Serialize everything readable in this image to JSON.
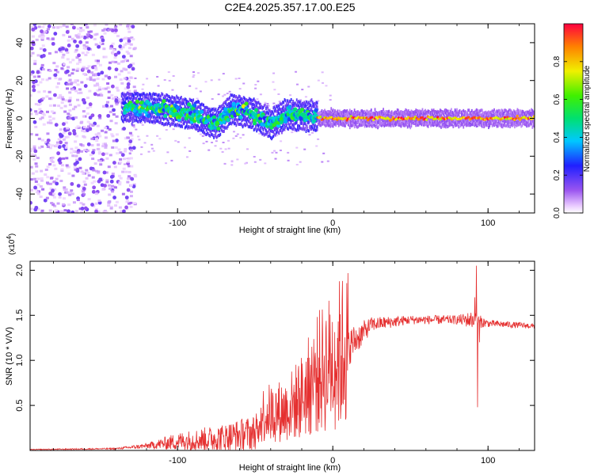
{
  "title": "C2E4.2025.357.17.00.E25",
  "chart_data": [
    {
      "type": "heatmap",
      "name": "spectrogram",
      "xlabel": "Height of straight line (km)",
      "ylabel": "Frequency (Hz)",
      "xlim": [
        -195,
        130
      ],
      "ylim": [
        -50,
        50
      ],
      "xticks": [
        -100,
        0,
        100
      ],
      "yticks": [
        -40,
        -20,
        0,
        20,
        40
      ],
      "colorbar": {
        "label": "Normalized spectral amplitude",
        "range": [
          0,
          1
        ],
        "ticks": [
          "0.0",
          "0.2",
          "0.4",
          "0.6",
          "0.8"
        ],
        "tick_values": [
          0,
          0.2,
          0.4,
          0.6,
          0.8
        ]
      },
      "regions": [
        {
          "x_range": [
            -195,
            -135
          ],
          "f_range": [
            -50,
            50
          ],
          "amplitude": 0.1,
          "note": "broadband low amplitude noise"
        },
        {
          "x_range": [
            -135,
            -10
          ],
          "center_f": [
            [
              -135,
              6
            ],
            [
              -110,
              5
            ],
            [
              -90,
              2
            ],
            [
              -75,
              -3
            ],
            [
              -65,
              5
            ],
            [
              -50,
              2
            ],
            [
              -40,
              -3
            ],
            [
              -30,
              2
            ],
            [
              -10,
              1
            ]
          ],
          "amplitude": 0.45
        },
        {
          "x_range": [
            -10,
            130
          ],
          "center_f": 0,
          "amplitude": 0.85
        }
      ]
    },
    {
      "type": "line",
      "name": "snr",
      "xlabel": "Height of straight line (km)",
      "ylabel": "SNR (10 * V/V)",
      "y_scale_label": "(x10",
      "y_scale_exp": "4",
      "y_scale_close": ")",
      "xlim": [
        -195,
        130
      ],
      "ylim": [
        0,
        2.1
      ],
      "xticks": [
        -100,
        0,
        100
      ],
      "yticks": [
        "0.5",
        "1.0",
        "1.5",
        "2.0"
      ],
      "ytick_values": [
        0.5,
        1.0,
        1.5,
        2.0
      ],
      "color": "#e53030",
      "envelope": [
        {
          "x": -195,
          "mean": 0.01,
          "noise": 0.005
        },
        {
          "x": -140,
          "mean": 0.02,
          "noise": 0.008
        },
        {
          "x": -120,
          "mean": 0.05,
          "noise": 0.03
        },
        {
          "x": -100,
          "mean": 0.1,
          "noise": 0.1
        },
        {
          "x": -70,
          "mean": 0.14,
          "noise": 0.16
        },
        {
          "x": -50,
          "mean": 0.2,
          "noise": 0.2
        },
        {
          "x": -45,
          "mean": 0.4,
          "noise": 0.4
        },
        {
          "x": -30,
          "mean": 0.45,
          "noise": 0.45
        },
        {
          "x": -20,
          "mean": 0.6,
          "noise": 0.45
        },
        {
          "x": -10,
          "mean": 0.85,
          "noise": 0.35
        },
        {
          "x": 10,
          "mean": 1.15,
          "noise": 0.22
        },
        {
          "x": 25,
          "mean": 1.4,
          "noise": 0.08
        },
        {
          "x": 50,
          "mean": 1.45,
          "noise": 0.05
        },
        {
          "x": 80,
          "mean": 1.45,
          "noise": 0.05
        },
        {
          "x": 90,
          "mean": 1.45,
          "noise": 0.1
        },
        {
          "x": 100,
          "mean": 1.41,
          "noise": 0.04
        },
        {
          "x": 130,
          "mean": 1.38,
          "noise": 0.03
        }
      ],
      "spikes": [
        {
          "x": 92.5,
          "y": 2.05
        },
        {
          "x": 93.2,
          "y": 0.48
        },
        {
          "x": 91.5,
          "y": 1.7
        },
        {
          "x": 94.5,
          "y": 1.2
        }
      ]
    }
  ]
}
